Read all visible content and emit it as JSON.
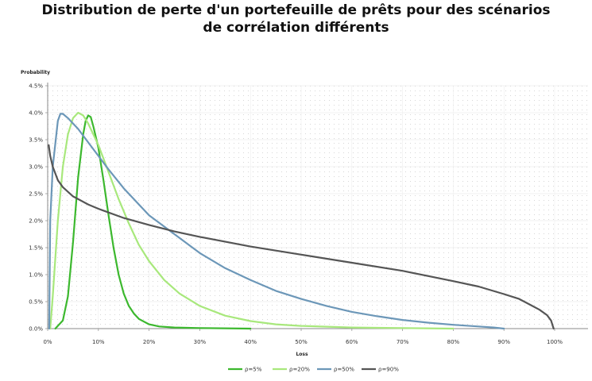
{
  "title": {
    "line1": "Distribution de perte d'un portefeuille de prêts pour des scénarios",
    "line2": "de corrélation différents"
  },
  "chart_data": {
    "type": "line",
    "ylabel": "Probability",
    "xlabel": "Loss",
    "xlim": [
      0,
      100
    ],
    "ylim": [
      0,
      4.5
    ],
    "x_ticks": [
      "0%",
      "10%",
      "20%",
      "30%",
      "40%",
      "50%",
      "60%",
      "70%",
      "80%",
      "90%",
      "100%"
    ],
    "y_ticks": [
      "0.0%",
      "0.5%",
      "1.0%",
      "1.5%",
      "2.0%",
      "2.5%",
      "3.0%",
      "3.5%",
      "4.0%",
      "4.5%"
    ],
    "grid": true,
    "legend_position": "bottom",
    "series": [
      {
        "name": "ρ=5%",
        "color": "#3cb82e",
        "points": [
          [
            1.5,
            0
          ],
          [
            3,
            0.15
          ],
          [
            4,
            0.6
          ],
          [
            5,
            1.6
          ],
          [
            6,
            2.8
          ],
          [
            7,
            3.6
          ],
          [
            7.5,
            3.85
          ],
          [
            8,
            3.95
          ],
          [
            8.5,
            3.92
          ],
          [
            9,
            3.75
          ],
          [
            10,
            3.35
          ],
          [
            11,
            2.75
          ],
          [
            12,
            2.1
          ],
          [
            13,
            1.5
          ],
          [
            14,
            1.0
          ],
          [
            15,
            0.65
          ],
          [
            16,
            0.42
          ],
          [
            17,
            0.28
          ],
          [
            18,
            0.18
          ],
          [
            20,
            0.08
          ],
          [
            22,
            0.04
          ],
          [
            25,
            0.02
          ],
          [
            30,
            0.01
          ],
          [
            40,
            0
          ]
        ]
      },
      {
        "name": "ρ=20%",
        "color": "#a8e87c",
        "points": [
          [
            0.5,
            0
          ],
          [
            1,
            0.6
          ],
          [
            2,
            2.0
          ],
          [
            3,
            3.0
          ],
          [
            4,
            3.6
          ],
          [
            5,
            3.9
          ],
          [
            6,
            4.0
          ],
          [
            7,
            3.95
          ],
          [
            8,
            3.8
          ],
          [
            10,
            3.4
          ],
          [
            12,
            2.9
          ],
          [
            14,
            2.4
          ],
          [
            16,
            1.95
          ],
          [
            18,
            1.55
          ],
          [
            20,
            1.25
          ],
          [
            23,
            0.9
          ],
          [
            26,
            0.65
          ],
          [
            30,
            0.42
          ],
          [
            35,
            0.24
          ],
          [
            40,
            0.14
          ],
          [
            45,
            0.08
          ],
          [
            50,
            0.05
          ],
          [
            60,
            0.02
          ],
          [
            70,
            0.01
          ],
          [
            80,
            0
          ]
        ]
      },
      {
        "name": "ρ=50%",
        "color": "#6c97b8",
        "points": [
          [
            0.3,
            0
          ],
          [
            0.5,
            2.0
          ],
          [
            1,
            3.0
          ],
          [
            2,
            3.85
          ],
          [
            2.5,
            3.98
          ],
          [
            3,
            3.98
          ],
          [
            4,
            3.9
          ],
          [
            6,
            3.7
          ],
          [
            8,
            3.45
          ],
          [
            10,
            3.2
          ],
          [
            12,
            2.95
          ],
          [
            15,
            2.6
          ],
          [
            18,
            2.3
          ],
          [
            20,
            2.1
          ],
          [
            25,
            1.75
          ],
          [
            30,
            1.4
          ],
          [
            35,
            1.12
          ],
          [
            40,
            0.9
          ],
          [
            45,
            0.7
          ],
          [
            50,
            0.55
          ],
          [
            55,
            0.42
          ],
          [
            60,
            0.31
          ],
          [
            65,
            0.23
          ],
          [
            70,
            0.16
          ],
          [
            75,
            0.11
          ],
          [
            80,
            0.07
          ],
          [
            85,
            0.04
          ],
          [
            88,
            0.02
          ],
          [
            90,
            0
          ]
        ]
      },
      {
        "name": "ρ=90%",
        "color": "#555555",
        "points": [
          [
            0.2,
            3.4
          ],
          [
            0.5,
            3.2
          ],
          [
            1,
            3.0
          ],
          [
            2,
            2.75
          ],
          [
            3,
            2.62
          ],
          [
            5,
            2.45
          ],
          [
            8,
            2.3
          ],
          [
            10,
            2.22
          ],
          [
            15,
            2.05
          ],
          [
            20,
            1.92
          ],
          [
            25,
            1.8
          ],
          [
            30,
            1.7
          ],
          [
            40,
            1.52
          ],
          [
            50,
            1.37
          ],
          [
            60,
            1.22
          ],
          [
            70,
            1.07
          ],
          [
            80,
            0.88
          ],
          [
            85,
            0.78
          ],
          [
            90,
            0.64
          ],
          [
            93,
            0.55
          ],
          [
            95,
            0.45
          ],
          [
            97,
            0.35
          ],
          [
            98.5,
            0.25
          ],
          [
            99.3,
            0.15
          ],
          [
            99.8,
            0
          ]
        ]
      }
    ]
  }
}
